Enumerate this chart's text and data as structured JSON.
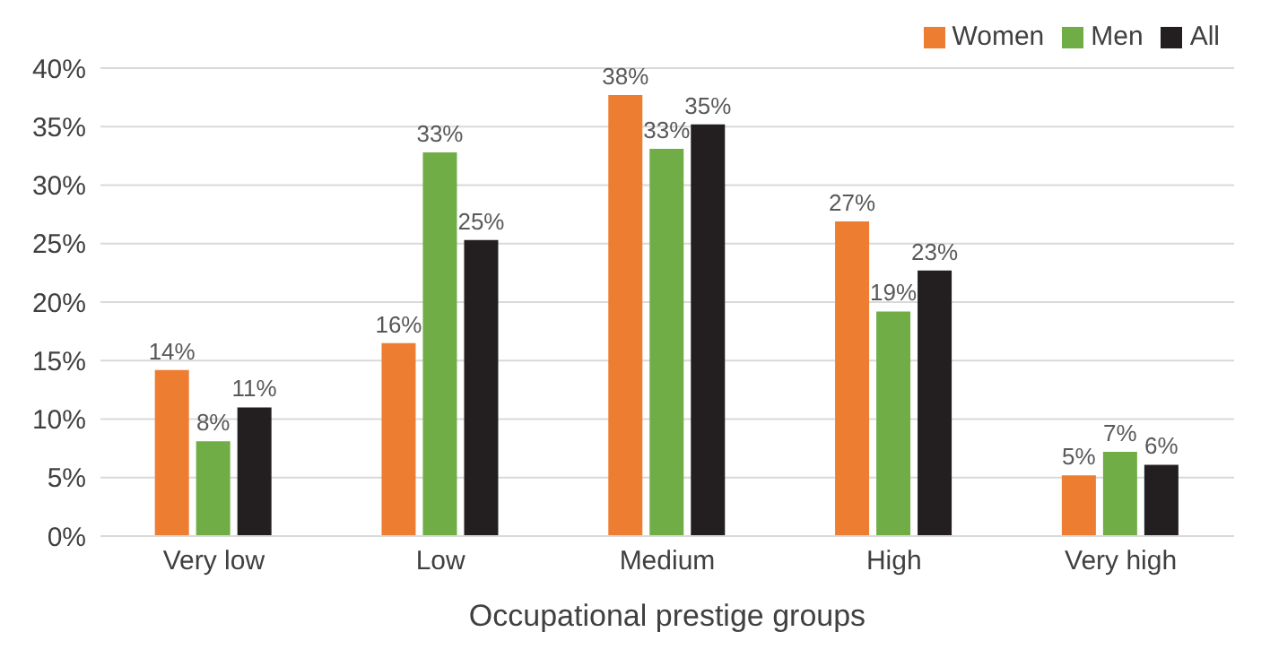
{
  "chart_data": {
    "type": "bar",
    "xlabel": "Occupational prestige groups",
    "categories": [
      "Very low",
      "Low",
      "Medium",
      "High",
      "Very high"
    ],
    "series": [
      {
        "name": "Women",
        "color": "#ed7d31",
        "values": [
          14.2,
          16.5,
          37.7,
          26.9,
          5.2
        ],
        "value_labels": [
          "14%",
          "16%",
          "38%",
          "27%",
          "5%"
        ]
      },
      {
        "name": "Men",
        "color": "#70ad47",
        "values": [
          8.1,
          32.8,
          33.1,
          19.2,
          7.2
        ],
        "value_labels": [
          "8%",
          "33%",
          "33%",
          "19%",
          "7%"
        ]
      },
      {
        "name": "All",
        "color": "#231f20",
        "values": [
          11,
          25.3,
          35.2,
          22.7,
          6.1
        ],
        "value_labels": [
          "11%",
          "25%",
          "35%",
          "23%",
          "6%"
        ]
      }
    ],
    "ylim": [
      0,
      40
    ],
    "yticks": [
      {
        "value": 0,
        "label": "0%"
      },
      {
        "value": 5,
        "label": "5%"
      },
      {
        "value": 10,
        "label": "10%"
      },
      {
        "value": 15,
        "label": "15%"
      },
      {
        "value": 20,
        "label": "20%"
      },
      {
        "value": 25,
        "label": "25%"
      },
      {
        "value": 30,
        "label": "30%"
      },
      {
        "value": 35,
        "label": "35%"
      },
      {
        "value": 40,
        "label": "40%"
      }
    ],
    "grid": "y",
    "legend": "top right"
  }
}
